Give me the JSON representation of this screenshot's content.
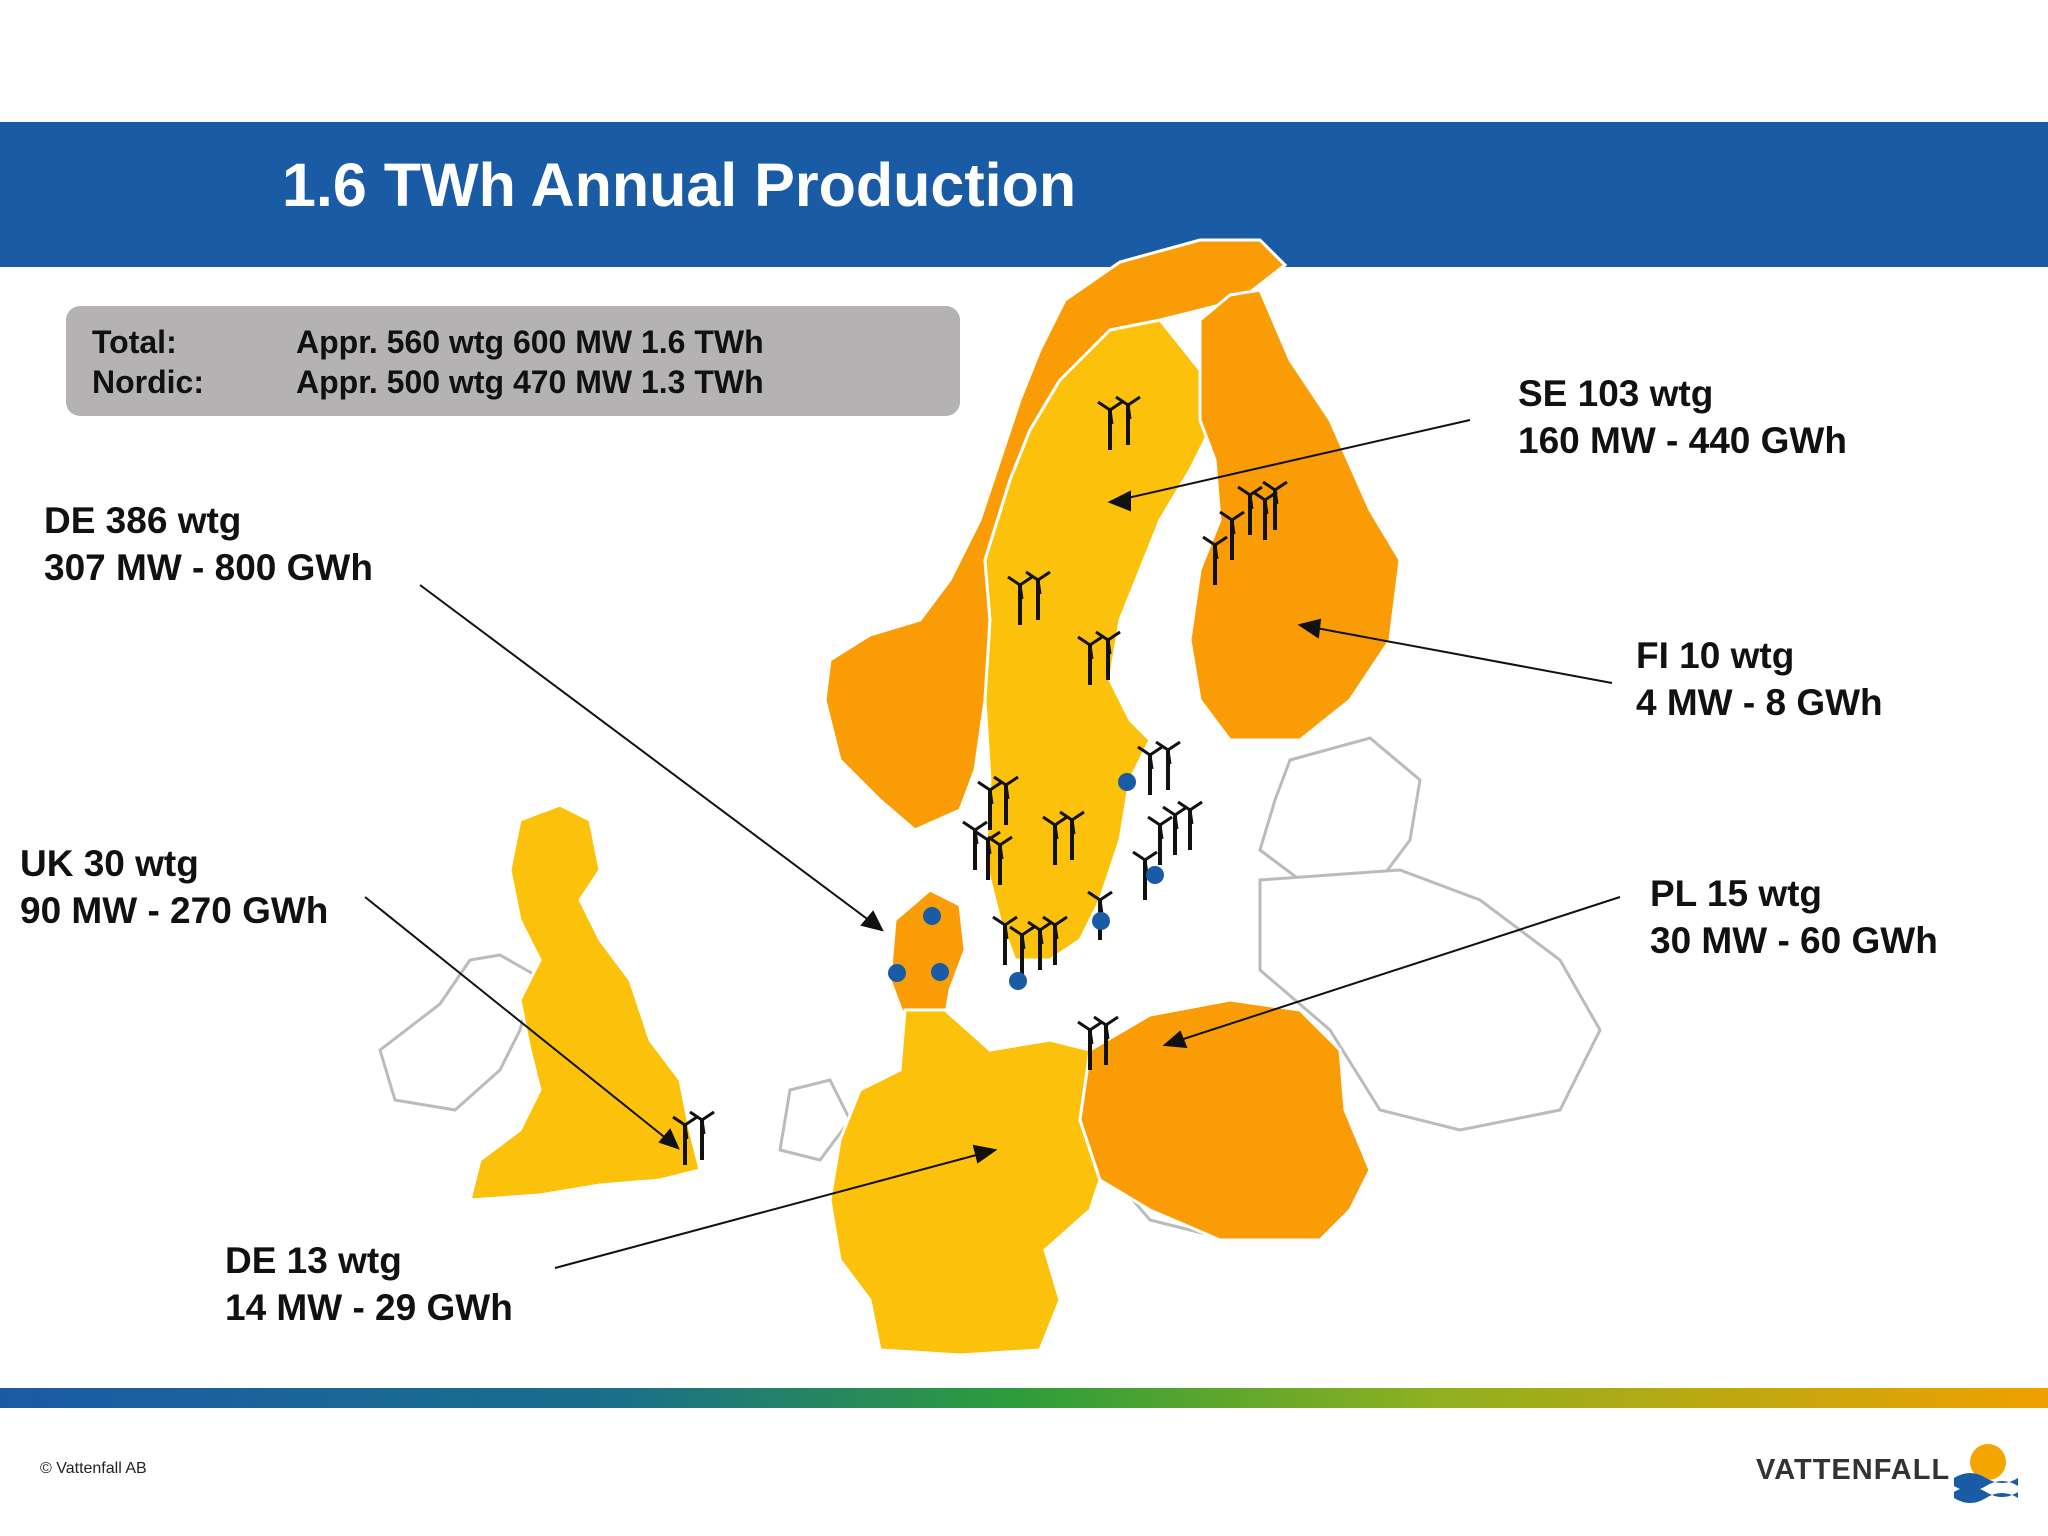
{
  "title": "1.6 TWh Annual Production",
  "summary": {
    "rows": [
      {
        "label": "Total:",
        "value": "Appr. 560 wtg  600 MW  1.6 TWh"
      },
      {
        "label": "Nordic:",
        "value": "Appr. 500 wtg  470 MW  1.3 TWh"
      }
    ]
  },
  "callouts": {
    "se": {
      "line1": "SE 103 wtg",
      "line2": "160 MW - 440 GWh"
    },
    "de_offshore": {
      "line1": "DE 386 wtg",
      "line2": "307 MW - 800 GWh"
    },
    "fi": {
      "line1": "FI 10 wtg",
      "line2": "4 MW - 8 GWh"
    },
    "uk": {
      "line1": "UK 30 wtg",
      "line2": "90 MW - 270 GWh"
    },
    "pl": {
      "line1": "PL 15 wtg",
      "line2": "30 MW - 60 GWh"
    },
    "de_onshore": {
      "line1": "DE 13 wtg",
      "line2": "14 MW - 29 GWh"
    }
  },
  "colors": {
    "header": "#1a5ba6",
    "country_yellow": "#fcc10a",
    "country_orange": "#fa9c06",
    "site_dot": "#1a5ba6"
  },
  "footer": {
    "copyright": "© Vattenfall AB",
    "logo": "VATTENFALL"
  }
}
